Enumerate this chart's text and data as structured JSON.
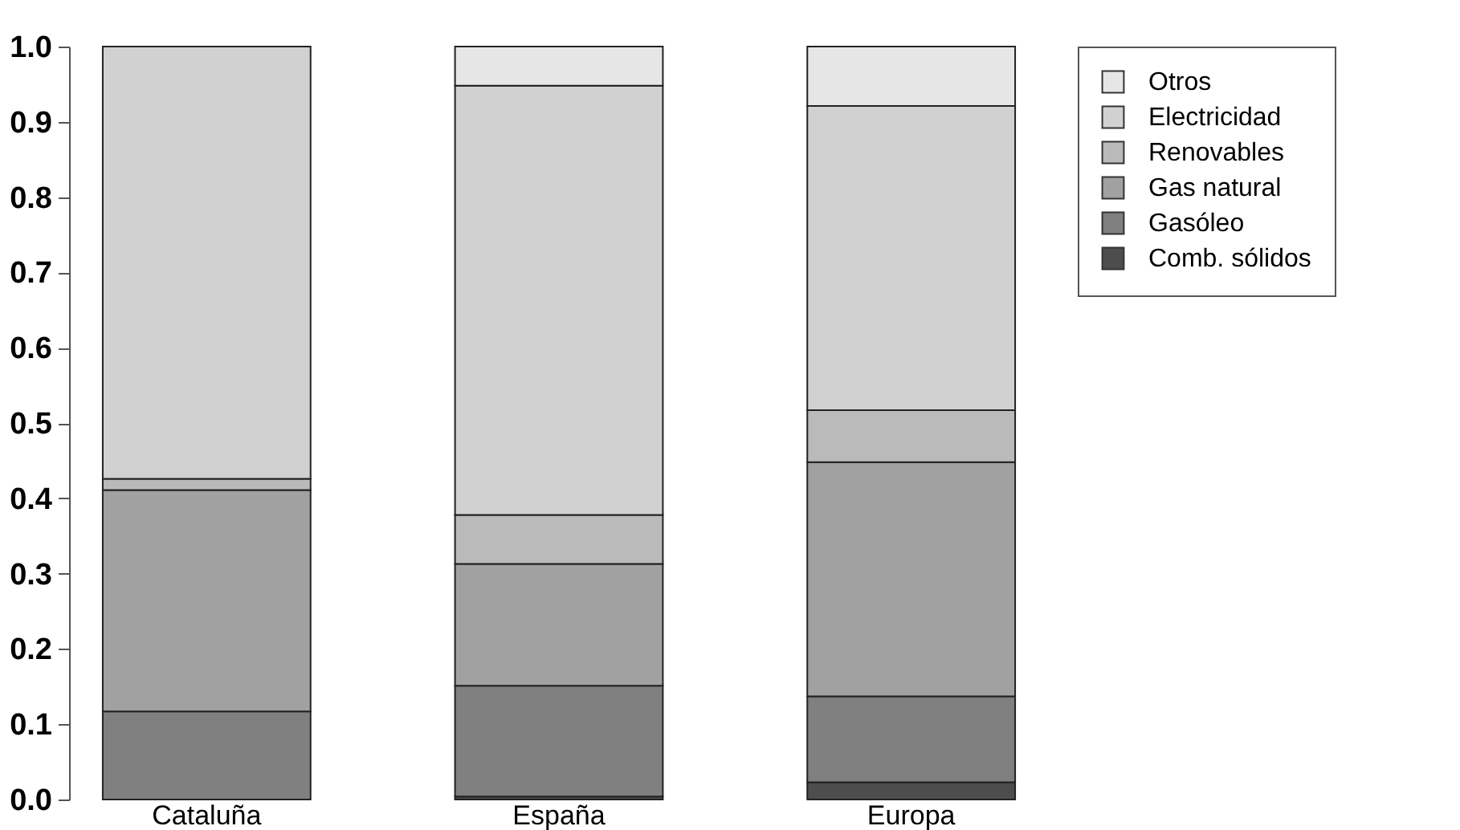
{
  "chart_data": {
    "type": "bar",
    "stacked": true,
    "categories": [
      "Cataluña",
      "España",
      "Europa"
    ],
    "series": [
      {
        "name": "Comb. sólidos",
        "color": "#4d4d4d",
        "values": [
          0,
          0.004,
          0.023
        ]
      },
      {
        "name": "Gasóleo",
        "color": "#808080",
        "values": [
          0.117,
          0.147,
          0.114
        ]
      },
      {
        "name": "Gas natural",
        "color": "#a1a1a1",
        "values": [
          0.294,
          0.162,
          0.311
        ]
      },
      {
        "name": "Renovables",
        "color": "#bababa",
        "values": [
          0.015,
          0.065,
          0.069
        ]
      },
      {
        "name": "Electricidad",
        "color": "#d1d1d1",
        "values": [
          0.574,
          0.57,
          0.404
        ]
      },
      {
        "name": "Otros",
        "color": "#e6e6e6",
        "values": [
          0,
          0.052,
          0.079
        ]
      }
    ],
    "ylim": [
      0,
      1
    ],
    "yticks": [
      {
        "value": 0,
        "label": "0.0"
      },
      {
        "value": 0.1,
        "label": "0.1"
      },
      {
        "value": 0.2,
        "label": "0.2"
      },
      {
        "value": 0.3,
        "label": "0.3"
      },
      {
        "value": 0.4,
        "label": "0.4"
      },
      {
        "value": 0.5,
        "label": "0.5"
      },
      {
        "value": 0.6,
        "label": "0.6"
      },
      {
        "value": 0.7,
        "label": "0.7"
      },
      {
        "value": 0.8,
        "label": "0.8"
      },
      {
        "value": 0.9,
        "label": "0.9"
      },
      {
        "value": 1,
        "label": "1.0"
      }
    ],
    "grid": false,
    "legend": "right"
  }
}
